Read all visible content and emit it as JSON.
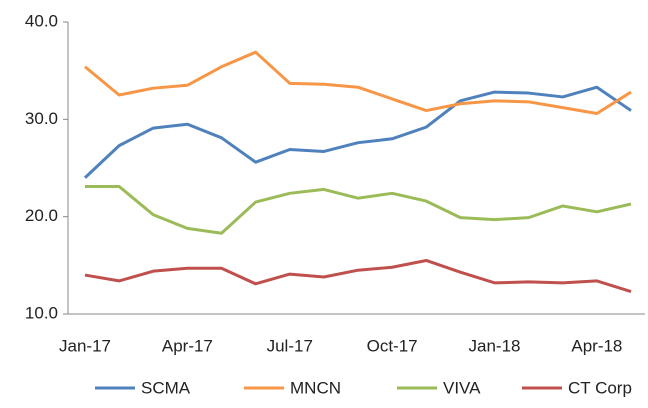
{
  "chart_data": {
    "type": "line",
    "categories": [
      "Jan-17",
      null,
      null,
      "Apr-17",
      null,
      null,
      "Jul-17",
      null,
      null,
      "Oct-17",
      null,
      null,
      "Jan-18",
      null,
      null,
      "Apr-18",
      null
    ],
    "series": [
      {
        "name": "SCMA",
        "color": "#4f81bd",
        "values": [
          24.0,
          27.3,
          29.1,
          29.5,
          28.1,
          25.6,
          26.9,
          26.7,
          27.6,
          28.0,
          29.2,
          31.9,
          32.8,
          32.7,
          32.3,
          33.3,
          30.9
        ]
      },
      {
        "name": "MNCN",
        "color": "#f79646",
        "values": [
          35.4,
          32.5,
          33.2,
          33.5,
          35.4,
          36.9,
          33.7,
          33.6,
          33.3,
          32.1,
          30.9,
          31.6,
          31.9,
          31.8,
          31.2,
          30.6,
          32.8
        ]
      },
      {
        "name": "VIVA",
        "color": "#9bbb59",
        "values": [
          23.1,
          23.1,
          20.2,
          18.8,
          18.3,
          21.5,
          22.4,
          22.8,
          21.9,
          22.4,
          21.6,
          19.9,
          19.7,
          19.9,
          21.1,
          20.5,
          21.3
        ]
      },
      {
        "name": "CT Corp",
        "color": "#c0504d",
        "values": [
          14.0,
          13.4,
          14.4,
          14.7,
          14.7,
          13.1,
          14.1,
          13.8,
          14.5,
          14.8,
          15.5,
          14.3,
          13.2,
          13.3,
          13.2,
          13.4,
          12.3
        ]
      }
    ],
    "ylim": [
      10,
      40
    ],
    "yticks": [
      {
        "value": 10,
        "label": "10.0"
      },
      {
        "value": 20,
        "label": "20.0"
      },
      {
        "value": 30,
        "label": "30.0"
      },
      {
        "value": 40,
        "label": "40.0"
      }
    ],
    "legend": "bottom",
    "grid": false
  }
}
